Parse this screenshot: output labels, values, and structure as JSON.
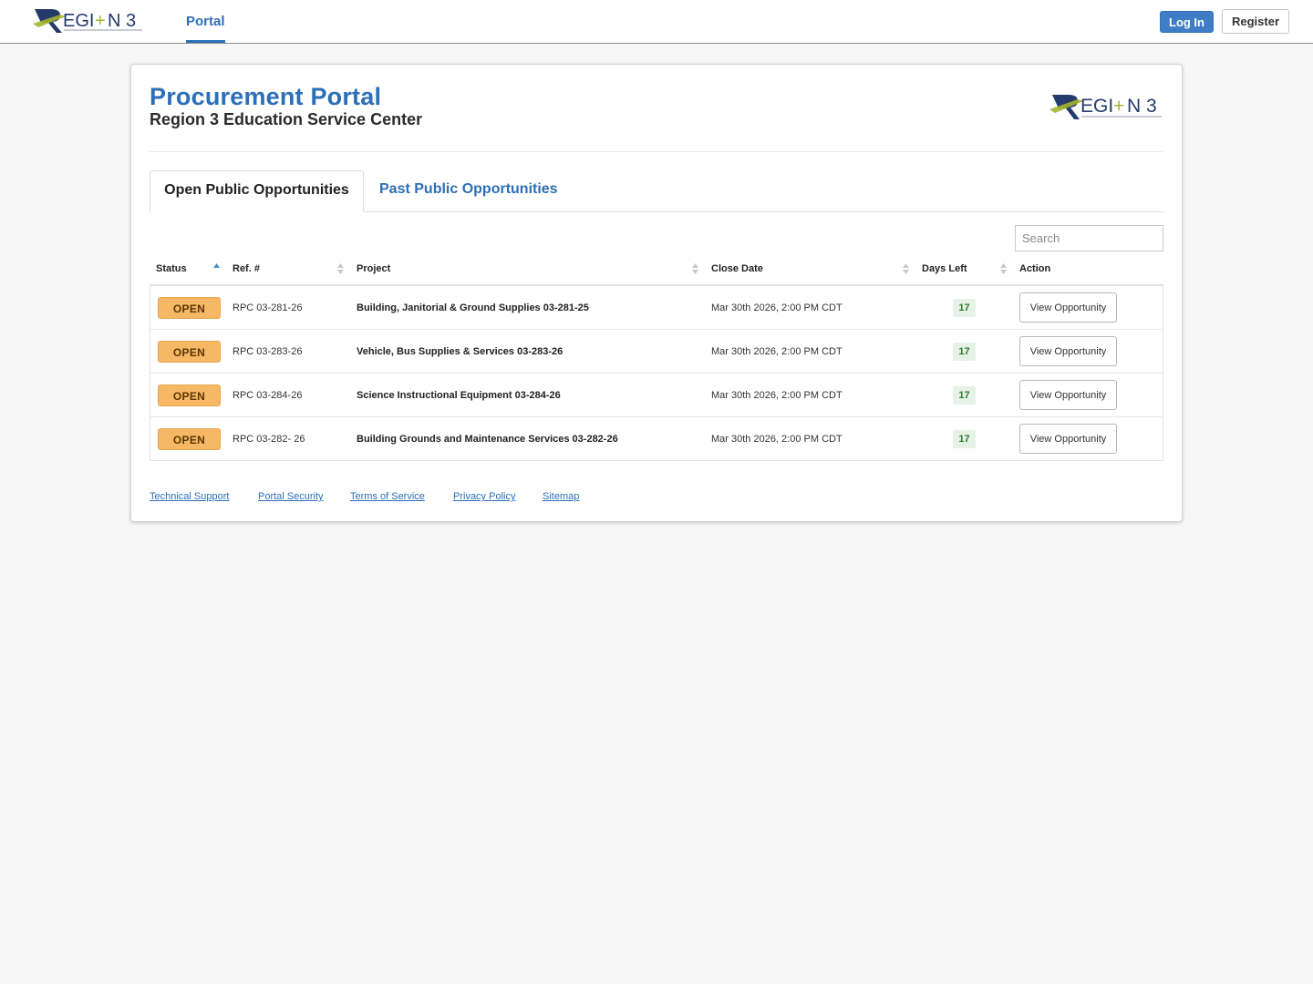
{
  "nav": {
    "logo_text": "REGION 3",
    "portal_label": "Portal",
    "login_label": "Log In",
    "register_label": "Register"
  },
  "header": {
    "title": "Procurement Portal",
    "subtitle": "Region 3 Education Service Center"
  },
  "tabs": [
    {
      "label": "Open Public Opportunities",
      "active": true
    },
    {
      "label": "Past Public Opportunities",
      "active": false
    }
  ],
  "search": {
    "placeholder": "Search",
    "value": ""
  },
  "table": {
    "columns": [
      "Status",
      "Ref. #",
      "Project",
      "Close Date",
      "Days Left",
      "Action"
    ],
    "rows": [
      {
        "status": "OPEN",
        "ref": "RPC 03-281-26",
        "project": "Building, Janitorial & Ground Supplies 03-281-25",
        "close_date": "Mar 30th 2026, 2:00 PM CDT",
        "days_left": "17",
        "action": "View Opportunity"
      },
      {
        "status": "OPEN",
        "ref": "RPC 03-283-26",
        "project": "Vehicle, Bus Supplies & Services 03-283-26",
        "close_date": "Mar 30th 2026, 2:00 PM CDT",
        "days_left": "17",
        "action": "View Opportunity"
      },
      {
        "status": "OPEN",
        "ref": "RPC 03-284-26",
        "project": "Science Instructional Equipment 03-284-26",
        "close_date": "Mar 30th 2026, 2:00 PM CDT",
        "days_left": "17",
        "action": "View Opportunity"
      },
      {
        "status": "OPEN",
        "ref": "RPC 03-282- 26",
        "project": "Building Grounds and Maintenance Services 03-282-26",
        "close_date": "Mar 30th 2026, 2:00 PM CDT",
        "days_left": "17",
        "action": "View Opportunity"
      }
    ]
  },
  "footer": {
    "links": [
      "Technical Support",
      "Portal Security",
      "Terms of Service",
      "Privacy Policy",
      "Sitemap"
    ]
  },
  "colors": {
    "brand_blue": "#2c6fb7",
    "login_button": "#3f7ec6",
    "open_badge": "#f7b866",
    "days_left_bg": "#e6f2e6",
    "logo_green": "#a3b52b",
    "logo_navy": "#243a6b"
  },
  "icons": [
    "region3-logo",
    "sort-asc-icon",
    "sort-both-icon"
  ]
}
